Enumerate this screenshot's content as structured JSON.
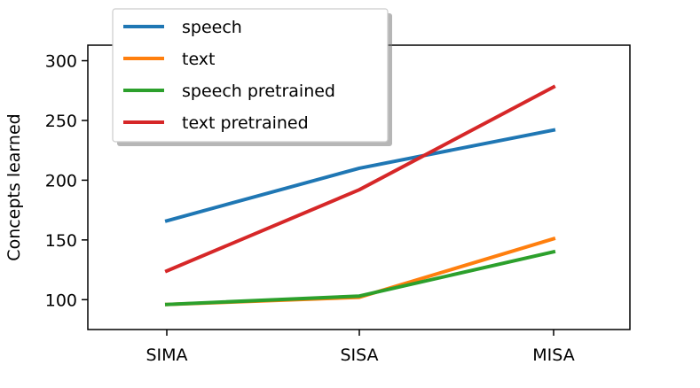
{
  "chart_data": {
    "type": "line",
    "categories": [
      "SIMA",
      "SISA",
      "MISA"
    ],
    "ylabel": "Concepts learned",
    "yticks": [
      100,
      150,
      200,
      250,
      300
    ],
    "ylim": [
      75,
      313
    ],
    "legend_position": "top-left",
    "series": [
      {
        "name": "speech",
        "color": "#1f77b4",
        "values": [
          166,
          210,
          242
        ]
      },
      {
        "name": "text",
        "color": "#ff7f0e",
        "values": [
          96,
          102,
          151
        ]
      },
      {
        "name": "speech pretrained",
        "color": "#2ca02c",
        "values": [
          96,
          103,
          140
        ]
      },
      {
        "name": "text pretrained",
        "color": "#d62728",
        "values": [
          124,
          192,
          278
        ]
      }
    ]
  }
}
